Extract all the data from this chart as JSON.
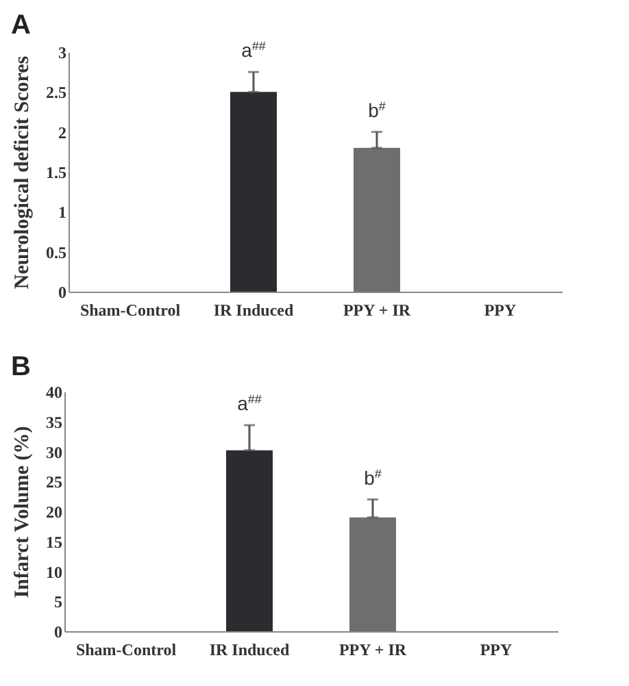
{
  "chart_data": [
    {
      "type": "bar",
      "title": "A",
      "ylabel": "Neurological deficit Scores",
      "categories": [
        "Sham-Control",
        "IR Induced",
        "PPY + IR",
        "PPY"
      ],
      "values": [
        0,
        2.5,
        1.8,
        0
      ],
      "colors": [
        "#2b2b30",
        "#2b2b30",
        "#6e6e6e",
        "#6e6e6e"
      ],
      "errors": [
        null,
        [
          2.5,
          2.75
        ],
        [
          1.8,
          2.0
        ],
        null
      ],
      "ylim": [
        0,
        3
      ],
      "yticks": [
        0,
        0.5,
        1,
        1.5,
        2,
        2.5,
        3
      ],
      "grid": false,
      "annotations": [
        {
          "text": "a$^{##}$",
          "x": "IR Induced",
          "y": 2.75
        },
        {
          "text": "b$^{#}$",
          "x": "PPY + IR",
          "y": 2.0
        }
      ]
    },
    {
      "type": "bar",
      "title": "B",
      "ylabel": "Infarct Volume (%)",
      "categories": [
        "Sham-Control",
        "IR Induced",
        "PPY + IR",
        "PPY"
      ],
      "values": [
        0,
        30.2,
        19,
        0
      ],
      "colors": [
        "#2b2b30",
        "#2b2b30",
        "#6e6e6e",
        "#6e6e6e"
      ],
      "errors": [
        null,
        [
          30.2,
          34.4
        ],
        [
          19,
          22
        ],
        null
      ],
      "ylim": [
        0,
        40
      ],
      "yticks": [
        0,
        5,
        10,
        15,
        20,
        25,
        30,
        35,
        40
      ],
      "grid": false,
      "annotations": [
        {
          "text": "a$^{##}$",
          "x": "IR Induced",
          "y": 34.4
        },
        {
          "text": "b$^{#}$",
          "x": "PPY + IR",
          "y": 22
        }
      ]
    }
  ]
}
